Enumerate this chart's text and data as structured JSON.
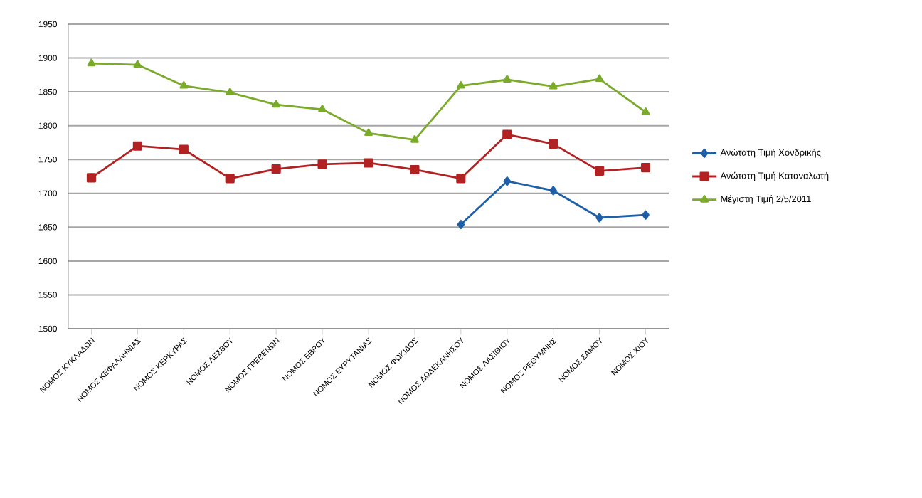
{
  "chart_data": {
    "type": "line",
    "categories": [
      "ΝΟΜΟΣ ΚΥΚΛΑΔΩΝ",
      "ΝΟΜΟΣ ΚΕΦΑΛΛΗΝΙΑΣ",
      "ΝΟΜΟΣ ΚΕΡΚΥΡΑΣ",
      "ΝΟΜΟΣ ΛΕΣΒΟΥ",
      "ΝΟΜΟΣ ΓΡΕΒΕΝΩΝ",
      "ΝΟΜΟΣ ΕΒΡΟΥ",
      "ΝΟΜΟΣ ΕΥΡΥΤΑΝΙΑΣ",
      "ΝΟΜΟΣ ΦΩΚΙΔΟΣ",
      "ΝΟΜΟΣ ΔΩΔΕΚΑΝΗΣΟΥ",
      "ΝΟΜΟΣ ΛΑΣΙΘΙΟΥ",
      "ΝΟΜΟΣ ΡΕΘΥΜΝΗΣ",
      "ΝΟΜΟΣ ΣΑΜΟΥ",
      "ΝΟΜΟΣ ΧΙΟΥ"
    ],
    "series": [
      {
        "name": "Ανώτατη Τιμή Χονδρικής",
        "color": "#1f5fa8",
        "marker": "diamond",
        "values": [
          null,
          null,
          null,
          null,
          null,
          null,
          null,
          null,
          1654,
          1718,
          1704,
          1664,
          1668
        ]
      },
      {
        "name": "Ανώτατη Τιμή Καταναλωτή",
        "color": "#b22222",
        "marker": "square",
        "values": [
          1723,
          1770,
          1765,
          1722,
          1736,
          1743,
          1745,
          1735,
          1722,
          1787,
          1773,
          1733,
          1738
        ]
      },
      {
        "name": "Μέγιστη Τιμή 2/5/2011",
        "color": "#7aab2a",
        "marker": "triangle",
        "values": [
          1892,
          1890,
          1859,
          1849,
          1831,
          1824,
          1789,
          1779,
          1859,
          1868,
          1858,
          1869,
          1820
        ]
      }
    ],
    "ylim": [
      1500,
      1950
    ],
    "yticks": [
      1500,
      1550,
      1600,
      1650,
      1700,
      1750,
      1800,
      1850,
      1900,
      1950
    ],
    "grid": "y",
    "legend": "right",
    "line_style": "solid"
  }
}
